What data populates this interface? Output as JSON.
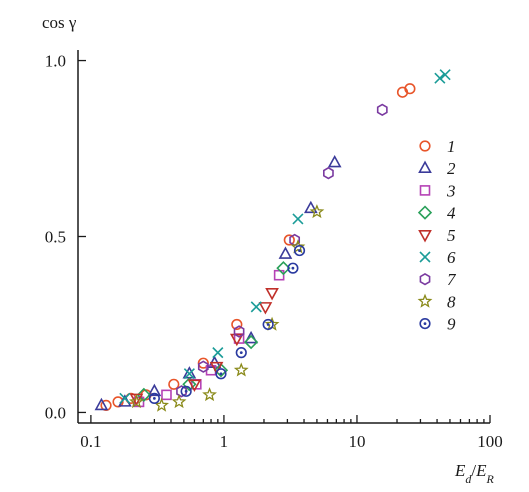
{
  "chart_data": {
    "type": "scatter",
    "title": "",
    "ylabel": "cos γ",
    "xlabel_parts": {
      "main1": "E",
      "sub1": "d",
      "slash": "/",
      "main2": "E",
      "sub2": "R"
    },
    "xscale": "log",
    "xlim": [
      0.08,
      100
    ],
    "ylim": [
      -0.03,
      1.03
    ],
    "xticks": [
      0.1,
      1,
      10,
      100
    ],
    "xtick_labels": [
      "0.1",
      "1",
      "10",
      "100"
    ],
    "yticks": [
      0.0,
      0.5,
      1.0
    ],
    "ytick_labels": [
      "0.0",
      "0.5",
      "1.0"
    ],
    "grid": false,
    "legend_placement": "right",
    "series": [
      {
        "name": "1",
        "marker": "circle",
        "color": "#e8552a",
        "points": [
          [
            0.13,
            0.02
          ],
          [
            0.16,
            0.03
          ],
          [
            0.2,
            0.04
          ],
          [
            0.26,
            0.05
          ],
          [
            0.42,
            0.08
          ],
          [
            0.7,
            0.14
          ],
          [
            1.25,
            0.25
          ],
          [
            3.1,
            0.49
          ],
          [
            22,
            0.91
          ],
          [
            25,
            0.92
          ]
        ]
      },
      {
        "name": "2",
        "marker": "triangle",
        "color": "#3b3b9a",
        "points": [
          [
            0.12,
            0.02
          ],
          [
            0.18,
            0.03
          ],
          [
            0.3,
            0.06
          ],
          [
            0.55,
            0.11
          ],
          [
            0.85,
            0.14
          ],
          [
            1.6,
            0.21
          ],
          [
            2.9,
            0.45
          ],
          [
            4.5,
            0.58
          ],
          [
            6.8,
            0.71
          ]
        ]
      },
      {
        "name": "3",
        "marker": "square",
        "color": "#b542b5",
        "points": [
          [
            0.23,
            0.03
          ],
          [
            0.37,
            0.05
          ],
          [
            0.62,
            0.08
          ],
          [
            0.8,
            0.12
          ],
          [
            1.3,
            0.21
          ],
          [
            2.6,
            0.39
          ]
        ]
      },
      {
        "name": "4",
        "marker": "diamond",
        "color": "#2aa05a",
        "points": [
          [
            0.25,
            0.05
          ],
          [
            0.55,
            0.08
          ],
          [
            0.95,
            0.12
          ],
          [
            1.6,
            0.2
          ],
          [
            2.8,
            0.41
          ]
        ]
      },
      {
        "name": "5",
        "marker": "triangle-down",
        "color": "#c0302a",
        "points": [
          [
            0.22,
            0.04
          ],
          [
            0.6,
            0.08
          ],
          [
            0.88,
            0.13
          ],
          [
            1.25,
            0.21
          ],
          [
            2.05,
            0.3
          ],
          [
            2.3,
            0.34
          ]
        ]
      },
      {
        "name": "6",
        "marker": "x",
        "color": "#1b9c98",
        "points": [
          [
            0.18,
            0.04
          ],
          [
            0.55,
            0.11
          ],
          [
            0.9,
            0.17
          ],
          [
            1.75,
            0.3
          ],
          [
            3.6,
            0.55
          ],
          [
            42,
            0.95
          ],
          [
            46,
            0.96
          ]
        ]
      },
      {
        "name": "7",
        "marker": "hexagon",
        "color": "#7a3aa0",
        "points": [
          [
            0.48,
            0.06
          ],
          [
            0.7,
            0.13
          ],
          [
            1.3,
            0.23
          ],
          [
            3.4,
            0.49
          ],
          [
            6.1,
            0.68
          ],
          [
            15.5,
            0.86
          ]
        ]
      },
      {
        "name": "8",
        "marker": "star",
        "color": "#8a8a1a",
        "points": [
          [
            0.22,
            0.03
          ],
          [
            0.34,
            0.02
          ],
          [
            0.46,
            0.03
          ],
          [
            0.78,
            0.05
          ],
          [
            1.35,
            0.12
          ],
          [
            2.3,
            0.25
          ],
          [
            3.6,
            0.47
          ],
          [
            5.0,
            0.57
          ]
        ]
      },
      {
        "name": "9",
        "marker": "circle-dot",
        "color": "#2a3aa0",
        "points": [
          [
            0.3,
            0.04
          ],
          [
            0.52,
            0.06
          ],
          [
            0.95,
            0.11
          ],
          [
            1.35,
            0.17
          ],
          [
            2.15,
            0.25
          ],
          [
            3.3,
            0.41
          ],
          [
            3.7,
            0.46
          ]
        ]
      }
    ]
  }
}
